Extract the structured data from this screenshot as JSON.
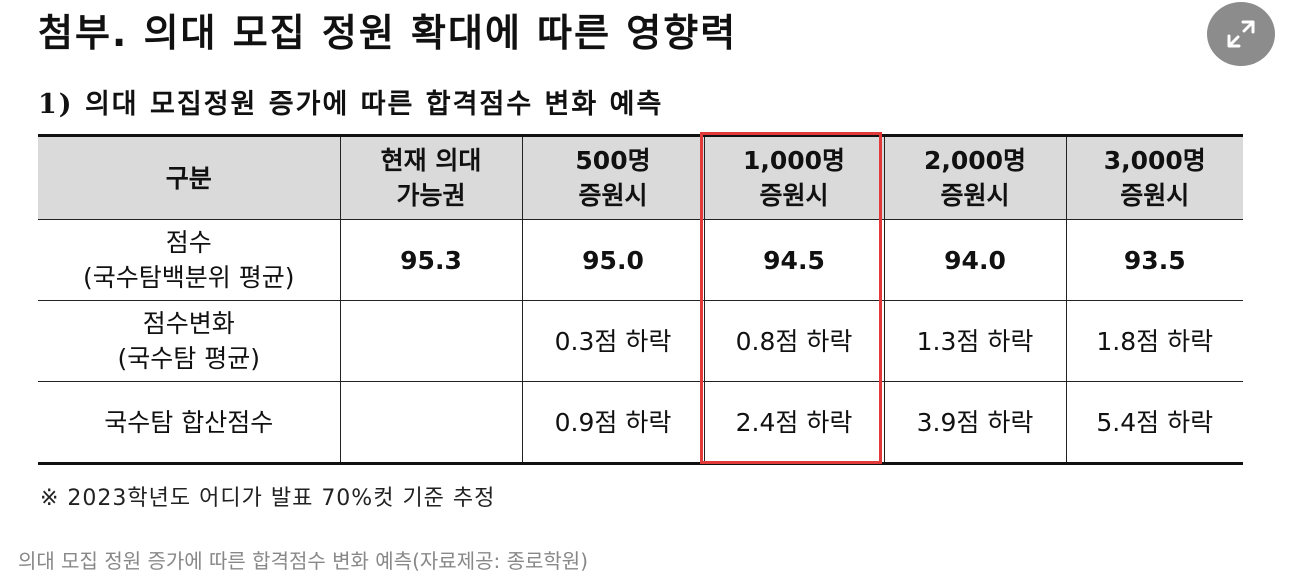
{
  "figure": {
    "title": "첨부. 의대 모집 정원 확대에 따른 영향력",
    "subtitle": "1) 의대 모집정원 증가에 따른 합격점수 변화 예측",
    "table": {
      "header": {
        "c0": "구분",
        "c1": [
          "현재 의대",
          "가능권"
        ],
        "c2": [
          "500명",
          "증원시"
        ],
        "c3": [
          "1,000명",
          "증원시"
        ],
        "c4": [
          "2,000명",
          "증원시"
        ],
        "c5": [
          "3,000명",
          "증원시"
        ]
      },
      "rows": [
        {
          "label": [
            "점수",
            "(국수탐백분위 평균)"
          ],
          "cells": [
            "95.3",
            "95.0",
            "94.5",
            "94.0",
            "93.5"
          ]
        },
        {
          "label": [
            "점수변화",
            "(국수탐 평균)"
          ],
          "cells": [
            "",
            "0.3점 하락",
            "0.8점 하락",
            "1.3점 하락",
            "1.8점 하락"
          ]
        },
        {
          "label": [
            "국수탐 합산점수"
          ],
          "cells": [
            "",
            "0.9점 하락",
            "2.4점 하락",
            "3.9점 하락",
            "5.4점 하락"
          ]
        }
      ],
      "highlight_color": "#e03a3a"
    },
    "note": "※ 2023학년도 어디가 발표 70%컷 기준 추정"
  },
  "expand_button": {
    "icon": "expand-icon"
  },
  "caption": "의대 모집 정원 증가에 따른 합격점수 변화 예측(자료제공: 종로학원)"
}
